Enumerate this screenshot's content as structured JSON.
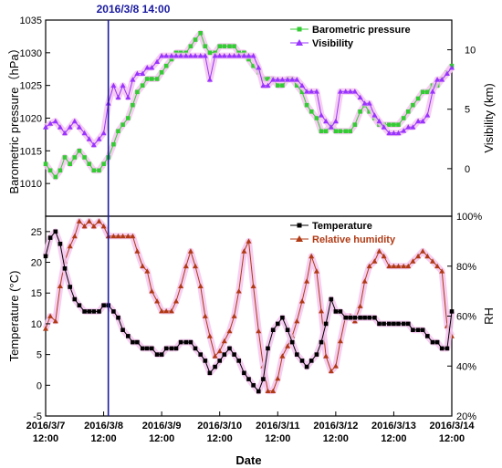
{
  "colors": {
    "pressure": "#33cc33",
    "visibility": "#9933ff",
    "temperature": "#000000",
    "humidity": "#b03a14",
    "glow": "#f4c6ee",
    "marker_line": "#1a1aa0"
  },
  "chart_data": [
    {
      "type": "line",
      "panel": "top",
      "annotation": "2016/3/8 14:00",
      "ylabel": "Barometric pressure（hPa）",
      "ylabel_right": "Visibility (km)",
      "ylim": [
        1005,
        1035
      ],
      "ylim_right": [
        -4,
        12.5
      ],
      "yticks": [
        "1010",
        "1015",
        "1020",
        "1025",
        "1030",
        "1035"
      ],
      "yticks_right": [
        "0",
        "5",
        "10"
      ],
      "legend_placement": "top-right",
      "series": [
        {
          "name": "Barometric pressure",
          "axis": "left",
          "marker": "square",
          "x": [
            0,
            0.08,
            0.17,
            0.25,
            0.33,
            0.42,
            0.5,
            0.58,
            0.67,
            0.75,
            0.83,
            0.92,
            1.0,
            1.08,
            1.17,
            1.25,
            1.33,
            1.42,
            1.5,
            1.58,
            1.67,
            1.75,
            1.83,
            1.92,
            2.0,
            2.08,
            2.17,
            2.25,
            2.33,
            2.42,
            2.5,
            2.58,
            2.67,
            2.75,
            2.83,
            2.92,
            3.0,
            3.08,
            3.17,
            3.25,
            3.33,
            3.42,
            3.5,
            3.58,
            3.67,
            3.75,
            3.83,
            3.92,
            4.0,
            4.08,
            4.17,
            4.25,
            4.33,
            4.42,
            4.5,
            4.58,
            4.67,
            4.75,
            4.83,
            4.92,
            5.0,
            5.08,
            5.17,
            5.25,
            5.33,
            5.42,
            5.5,
            5.58,
            5.67,
            5.75,
            5.83,
            5.92,
            6.0,
            6.08,
            6.17,
            6.25,
            6.33,
            6.42,
            6.5,
            6.58,
            6.67,
            6.75,
            6.83,
            6.92,
            7.0
          ],
          "y": [
            1013,
            1012,
            1011,
            1012,
            1014,
            1013,
            1014,
            1015,
            1014,
            1013,
            1012,
            1012,
            1013,
            1014,
            1016,
            1018,
            1019,
            1020,
            1022,
            1024,
            1025,
            1026,
            1026,
            1026,
            1027,
            1028,
            1029,
            1030,
            1030,
            1030,
            1031,
            1032,
            1033,
            1031,
            1030,
            1030,
            1031,
            1031,
            1031,
            1031,
            1030,
            1030,
            1029,
            1028,
            1027,
            1026,
            1026,
            1026,
            1025,
            1025,
            1026,
            1026,
            1025,
            1024,
            1022,
            1021,
            1020,
            1018,
            1018,
            1019,
            1018,
            1018,
            1018,
            1018,
            1019,
            1021,
            1022,
            1021,
            1020,
            1019,
            1019,
            1019,
            1019,
            1019,
            1020,
            1021,
            1022,
            1023,
            1024,
            1024,
            1025,
            1025,
            1026,
            1027,
            1028
          ]
        },
        {
          "name": "Visibility",
          "axis": "right",
          "marker": "triangle",
          "x": [
            0,
            0.08,
            0.17,
            0.25,
            0.33,
            0.42,
            0.5,
            0.58,
            0.67,
            0.75,
            0.83,
            0.92,
            1.0,
            1.08,
            1.17,
            1.25,
            1.33,
            1.42,
            1.5,
            1.58,
            1.67,
            1.75,
            1.83,
            1.92,
            2.0,
            2.08,
            2.17,
            2.25,
            2.33,
            2.42,
            2.5,
            2.58,
            2.67,
            2.75,
            2.83,
            2.92,
            3.0,
            3.08,
            3.17,
            3.25,
            3.33,
            3.42,
            3.5,
            3.58,
            3.67,
            3.75,
            3.83,
            3.92,
            4.0,
            4.08,
            4.17,
            4.25,
            4.33,
            4.42,
            4.5,
            4.58,
            4.67,
            4.75,
            4.83,
            4.92,
            5.0,
            5.08,
            5.17,
            5.25,
            5.33,
            5.42,
            5.5,
            5.58,
            5.67,
            5.75,
            5.83,
            5.92,
            6.0,
            6.08,
            6.17,
            6.25,
            6.33,
            6.42,
            6.5,
            6.58,
            6.67,
            6.75,
            6.83,
            6.92,
            7.0
          ],
          "y": [
            3.5,
            3.8,
            4.0,
            3.5,
            3.0,
            3.5,
            4.0,
            3.5,
            3.0,
            2.5,
            2.0,
            2.5,
            3.0,
            5.5,
            7.0,
            6.0,
            7.0,
            6.0,
            7.5,
            8.0,
            8.0,
            8.5,
            8.5,
            9.0,
            9.5,
            9.5,
            9.5,
            9.5,
            9.5,
            9.5,
            9.5,
            9.5,
            9.5,
            9.5,
            7.5,
            9.5,
            9.5,
            9.5,
            9.5,
            9.5,
            9.5,
            9.5,
            9.5,
            9.5,
            8.5,
            7.0,
            7.0,
            7.5,
            7.5,
            7.5,
            7.5,
            7.5,
            7.5,
            7.0,
            6.5,
            6.5,
            6.5,
            4.5,
            4.0,
            3.5,
            4.0,
            6.5,
            6.5,
            6.5,
            6.5,
            6.0,
            5.5,
            5.5,
            4.5,
            4.0,
            3.5,
            3.0,
            3.0,
            3.0,
            3.2,
            3.5,
            3.5,
            4.0,
            4.0,
            4.5,
            6.5,
            7.5,
            7.5,
            8.0,
            8.5
          ]
        }
      ]
    },
    {
      "type": "line",
      "panel": "bottom",
      "xlabel": "Date",
      "ylabel": "Temperature (°C)",
      "ylabel_right": "RH",
      "ylim": [
        -5,
        27.5
      ],
      "ylim_right": [
        20,
        100
      ],
      "yticks": [
        "-5",
        "0",
        "5",
        "10",
        "15",
        "20",
        "25"
      ],
      "yticks_right": [
        "20%",
        "40%",
        "60%",
        "80%",
        "100%"
      ],
      "xticks": [
        "2016/3/7\n12:00",
        "2016/3/8\n12:00",
        "2016/3/9\n12:00",
        "2016/3/10\n12:00",
        "2016/3/11\n12:00",
        "2016/3/12\n12:00",
        "2016/3/13\n12:00",
        "2016/3/14\n12:00"
      ],
      "legend_placement": "top-right",
      "series": [
        {
          "name": "Temperature",
          "axis": "left",
          "marker": "square",
          "x": [
            0,
            0.08,
            0.17,
            0.25,
            0.33,
            0.42,
            0.5,
            0.58,
            0.67,
            0.75,
            0.83,
            0.92,
            1.0,
            1.08,
            1.17,
            1.25,
            1.33,
            1.42,
            1.5,
            1.58,
            1.67,
            1.75,
            1.83,
            1.92,
            2.0,
            2.08,
            2.17,
            2.25,
            2.33,
            2.42,
            2.5,
            2.58,
            2.67,
            2.75,
            2.83,
            2.92,
            3.0,
            3.08,
            3.17,
            3.25,
            3.33,
            3.42,
            3.5,
            3.58,
            3.67,
            3.75,
            3.83,
            3.92,
            4.0,
            4.08,
            4.17,
            4.25,
            4.33,
            4.42,
            4.5,
            4.58,
            4.67,
            4.75,
            4.83,
            4.92,
            5.0,
            5.08,
            5.17,
            5.25,
            5.33,
            5.42,
            5.5,
            5.58,
            5.67,
            5.75,
            5.83,
            5.92,
            6.0,
            6.08,
            6.17,
            6.25,
            6.33,
            6.42,
            6.5,
            6.58,
            6.67,
            6.75,
            6.83,
            6.92,
            7.0
          ],
          "y": [
            21,
            24,
            25,
            23,
            19,
            16,
            14,
            13,
            12,
            12,
            12,
            12,
            13,
            13,
            12,
            11,
            9,
            8,
            7,
            7,
            6,
            6,
            6,
            5,
            5,
            6,
            6,
            6,
            7,
            7,
            7,
            6,
            5,
            4,
            2,
            3,
            4,
            5,
            6,
            5,
            4,
            2,
            1,
            0,
            -1,
            1,
            6,
            9,
            10,
            11,
            9,
            7,
            5,
            4,
            3,
            4,
            5,
            7,
            10,
            14,
            12,
            12,
            11,
            11,
            11,
            11,
            11,
            11,
            11,
            10,
            10,
            10,
            10,
            10,
            10,
            10,
            9,
            9,
            9,
            8,
            7,
            7,
            6,
            6,
            12
          ]
        },
        {
          "name": "Relative humidity",
          "axis": "right",
          "marker": "triangle",
          "x": [
            0,
            0.08,
            0.17,
            0.25,
            0.33,
            0.42,
            0.5,
            0.58,
            0.67,
            0.75,
            0.83,
            0.92,
            1.0,
            1.08,
            1.17,
            1.25,
            1.33,
            1.42,
            1.5,
            1.58,
            1.67,
            1.75,
            1.83,
            1.92,
            2.0,
            2.08,
            2.17,
            2.25,
            2.33,
            2.42,
            2.5,
            2.58,
            2.67,
            2.75,
            2.83,
            2.92,
            3.0,
            3.08,
            3.17,
            3.25,
            3.33,
            3.42,
            3.5,
            3.58,
            3.67,
            3.75,
            3.83,
            3.92,
            4.0,
            4.08,
            4.17,
            4.25,
            4.33,
            4.42,
            4.5,
            4.58,
            4.67,
            4.75,
            4.83,
            4.92,
            5.0,
            5.08,
            5.17,
            5.25,
            5.33,
            5.42,
            5.5,
            5.58,
            5.67,
            5.75,
            5.83,
            5.92,
            6.0,
            6.08,
            6.17,
            6.25,
            6.33,
            6.42,
            6.5,
            6.58,
            6.67,
            6.75,
            6.83,
            6.92,
            7.0
          ],
          "y": [
            55,
            60,
            58,
            72,
            82,
            88,
            92,
            98,
            96,
            98,
            96,
            98,
            96,
            92,
            92,
            92,
            92,
            92,
            92,
            86,
            80,
            78,
            70,
            66,
            62,
            62,
            62,
            66,
            72,
            80,
            86,
            80,
            72,
            60,
            52,
            44,
            46,
            50,
            54,
            60,
            70,
            86,
            90,
            72,
            54,
            40,
            30,
            30,
            35,
            44,
            48,
            52,
            58,
            66,
            74,
            84,
            78,
            62,
            44,
            38,
            40,
            50,
            60,
            60,
            58,
            64,
            74,
            80,
            82,
            86,
            84,
            80,
            80,
            80,
            80,
            80,
            82,
            84,
            86,
            84,
            82,
            80,
            78,
            56,
            52
          ]
        }
      ]
    }
  ]
}
